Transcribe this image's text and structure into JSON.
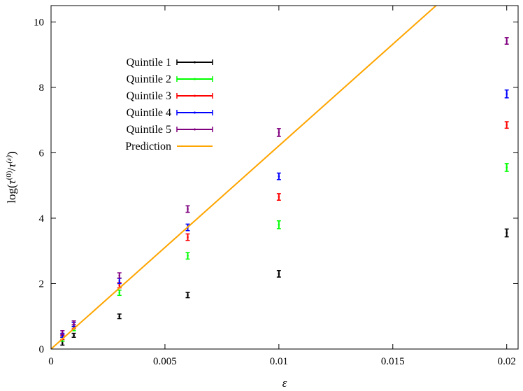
{
  "chart_data": {
    "type": "scatter",
    "xlabel": "ε",
    "ylabel": "log(τ(0)/τ(ε))",
    "xlim": [
      0,
      0.0205
    ],
    "ylim": [
      0,
      10.5
    ],
    "x_ticks": [
      0,
      0.005,
      0.01,
      0.015,
      0.02
    ],
    "x_tick_labels": [
      "0",
      "0.005",
      "0.01",
      "0.015",
      "0.02"
    ],
    "y_ticks": [
      0,
      2,
      4,
      6,
      8,
      10
    ],
    "y_tick_labels": [
      "0",
      "2",
      "4",
      "6",
      "8",
      "10"
    ],
    "grid": false,
    "legend_position": "upper-left",
    "series": [
      {
        "name": "Quintile 1",
        "color": "#000000",
        "marker": "errorbar",
        "x": [
          0.0005,
          0.001,
          0.003,
          0.006,
          0.01,
          0.02
        ],
        "y": [
          0.18,
          0.42,
          1.0,
          1.65,
          2.3,
          3.55
        ],
        "err": [
          0.06,
          0.06,
          0.07,
          0.08,
          0.1,
          0.12
        ]
      },
      {
        "name": "Quintile 2",
        "color": "#00ff00",
        "marker": "errorbar",
        "x": [
          0.0005,
          0.001,
          0.003,
          0.006,
          0.01,
          0.02
        ],
        "y": [
          0.3,
          0.62,
          1.72,
          2.85,
          3.8,
          5.55
        ],
        "err": [
          0.06,
          0.06,
          0.08,
          0.1,
          0.12,
          0.12
        ]
      },
      {
        "name": "Quintile 3",
        "color": "#ff0000",
        "marker": "errorbar",
        "x": [
          0.0005,
          0.001,
          0.003,
          0.006,
          0.01,
          0.02
        ],
        "y": [
          0.35,
          0.68,
          1.95,
          3.42,
          4.65,
          6.85
        ],
        "err": [
          0.06,
          0.06,
          0.08,
          0.1,
          0.1,
          0.1
        ]
      },
      {
        "name": "Quintile 4",
        "color": "#0000ff",
        "marker": "errorbar",
        "x": [
          0.0005,
          0.001,
          0.003,
          0.006,
          0.01,
          0.02
        ],
        "y": [
          0.42,
          0.75,
          2.08,
          3.72,
          5.28,
          7.8
        ],
        "err": [
          0.06,
          0.06,
          0.08,
          0.1,
          0.1,
          0.12
        ]
      },
      {
        "name": "Quintile 5",
        "color": "#800080",
        "marker": "errorbar",
        "x": [
          0.0005,
          0.001,
          0.003,
          0.006,
          0.01,
          0.02
        ],
        "y": [
          0.5,
          0.8,
          2.25,
          4.28,
          6.62,
          9.42
        ],
        "err": [
          0.06,
          0.06,
          0.08,
          0.1,
          0.12,
          0.1
        ]
      },
      {
        "name": "Prediction",
        "color": "#ffa500",
        "marker": "line",
        "x": [
          0,
          0.0169
        ],
        "y": [
          0,
          10.5
        ]
      }
    ]
  }
}
